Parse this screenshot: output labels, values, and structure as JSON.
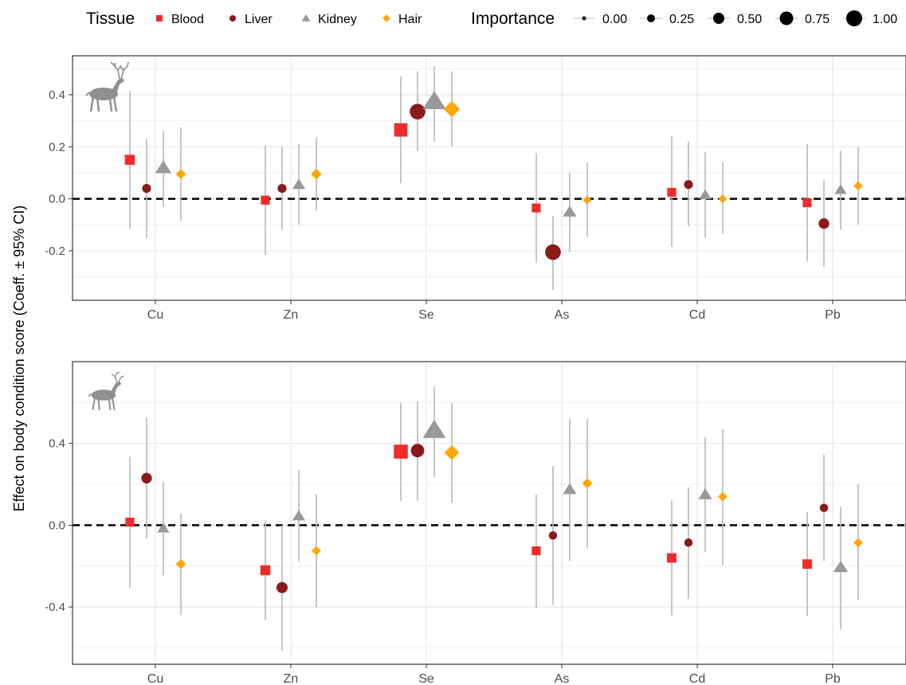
{
  "legend": {
    "tissue_title": "Tissue",
    "importance_title": "Importance",
    "tissues": [
      {
        "name": "Blood",
        "color": "#ee2c2c",
        "shape": "square"
      },
      {
        "name": "Liver",
        "color": "#8b1a1a",
        "shape": "circle"
      },
      {
        "name": "Kidney",
        "color": "#999999",
        "shape": "triangle"
      },
      {
        "name": "Hair",
        "color": "#ffa500",
        "shape": "diamond"
      }
    ],
    "importance_levels": [
      "0.00",
      "0.25",
      "0.50",
      "0.75",
      "1.00"
    ]
  },
  "y_axis_label": "Effect on body condition score (Coeff. ± 95% CI)",
  "chart_data": [
    {
      "type": "scatter",
      "panel": "top",
      "icon": "red-deer-icon",
      "categories": [
        "Cu",
        "Zn",
        "Se",
        "As",
        "Cd",
        "Pb"
      ],
      "ylim": [
        -0.39,
        0.55
      ],
      "yticks": [
        -0.2,
        0.0,
        0.2,
        0.4
      ],
      "ytick_labels": [
        "-0.2",
        "0.0",
        "0.2",
        "0.4"
      ],
      "reference_line": 0,
      "series": [
        {
          "name": "Blood",
          "values": [
            0.15,
            -0.005,
            0.265,
            -0.035,
            0.025,
            -0.015
          ],
          "lower": [
            -0.115,
            -0.215,
            0.06,
            -0.245,
            -0.185,
            -0.24
          ],
          "upper": [
            0.415,
            0.205,
            0.47,
            0.175,
            0.24,
            0.21
          ],
          "importance": [
            0.4,
            0.3,
            0.7,
            0.3,
            0.3,
            0.3
          ]
        },
        {
          "name": "Liver",
          "values": [
            0.04,
            0.04,
            0.335,
            -0.205,
            0.055,
            -0.095
          ],
          "lower": [
            -0.15,
            -0.12,
            0.185,
            -0.35,
            -0.105,
            -0.26
          ],
          "upper": [
            0.23,
            0.2,
            0.49,
            -0.065,
            0.22,
            0.07
          ],
          "importance": [
            0.3,
            0.3,
            0.9,
            0.9,
            0.3,
            0.45
          ]
        },
        {
          "name": "Kidney",
          "values": [
            0.12,
            0.055,
            0.375,
            -0.05,
            0.015,
            0.035
          ],
          "lower": [
            -0.03,
            -0.1,
            0.22,
            -0.205,
            -0.15,
            -0.12
          ],
          "upper": [
            0.26,
            0.21,
            0.51,
            0.1,
            0.18,
            0.185
          ],
          "importance": [
            0.55,
            0.35,
            1.0,
            0.4,
            0.3,
            0.3
          ]
        },
        {
          "name": "Hair",
          "values": [
            0.095,
            0.095,
            0.345,
            -0.005,
            0.0,
            0.05
          ],
          "lower": [
            -0.085,
            -0.045,
            0.2,
            -0.145,
            -0.135,
            -0.1
          ],
          "upper": [
            0.275,
            0.235,
            0.49,
            0.14,
            0.14,
            0.2
          ],
          "importance": [
            0.25,
            0.3,
            0.7,
            0.15,
            0.15,
            0.2
          ]
        }
      ]
    },
    {
      "type": "scatter",
      "panel": "bottom",
      "icon": "fallow-deer-icon",
      "categories": [
        "Cu",
        "Zn",
        "Se",
        "As",
        "Cd",
        "Pb"
      ],
      "ylim": [
        -0.68,
        0.8
      ],
      "yticks": [
        -0.4,
        0.0,
        0.4
      ],
      "ytick_labels": [
        "-0.4",
        "0.0",
        "0.4"
      ],
      "reference_line": 0,
      "series": [
        {
          "name": "Blood",
          "values": [
            0.015,
            -0.22,
            0.36,
            -0.125,
            -0.16,
            -0.19
          ],
          "lower": [
            -0.305,
            -0.465,
            0.12,
            -0.405,
            -0.44,
            -0.445
          ],
          "upper": [
            0.335,
            0.025,
            0.6,
            0.15,
            0.12,
            0.065
          ],
          "importance": [
            0.3,
            0.4,
            0.75,
            0.3,
            0.35,
            0.35
          ]
        },
        {
          "name": "Liver",
          "values": [
            0.23,
            -0.305,
            0.365,
            -0.05,
            -0.085,
            0.085
          ],
          "lower": [
            -0.065,
            -0.615,
            0.12,
            -0.39,
            -0.36,
            -0.175
          ],
          "upper": [
            0.525,
            0.0,
            0.605,
            0.29,
            0.185,
            0.345
          ],
          "importance": [
            0.45,
            0.5,
            0.7,
            0.25,
            0.25,
            0.25
          ]
        },
        {
          "name": "Kidney",
          "values": [
            -0.015,
            0.045,
            0.465,
            0.175,
            0.15,
            -0.205
          ],
          "lower": [
            -0.245,
            -0.18,
            0.235,
            -0.175,
            -0.13,
            -0.51
          ],
          "upper": [
            0.21,
            0.27,
            0.68,
            0.52,
            0.43,
            0.09
          ],
          "importance": [
            0.3,
            0.35,
            1.0,
            0.4,
            0.4,
            0.45
          ]
        },
        {
          "name": "Hair",
          "values": [
            -0.19,
            -0.125,
            0.355,
            0.205,
            0.14,
            -0.085
          ],
          "lower": [
            -0.44,
            -0.4,
            0.11,
            -0.11,
            -0.195,
            -0.365
          ],
          "upper": [
            0.06,
            0.15,
            0.6,
            0.52,
            0.47,
            0.2
          ],
          "importance": [
            0.25,
            0.2,
            0.6,
            0.25,
            0.2,
            0.2
          ]
        }
      ]
    }
  ]
}
